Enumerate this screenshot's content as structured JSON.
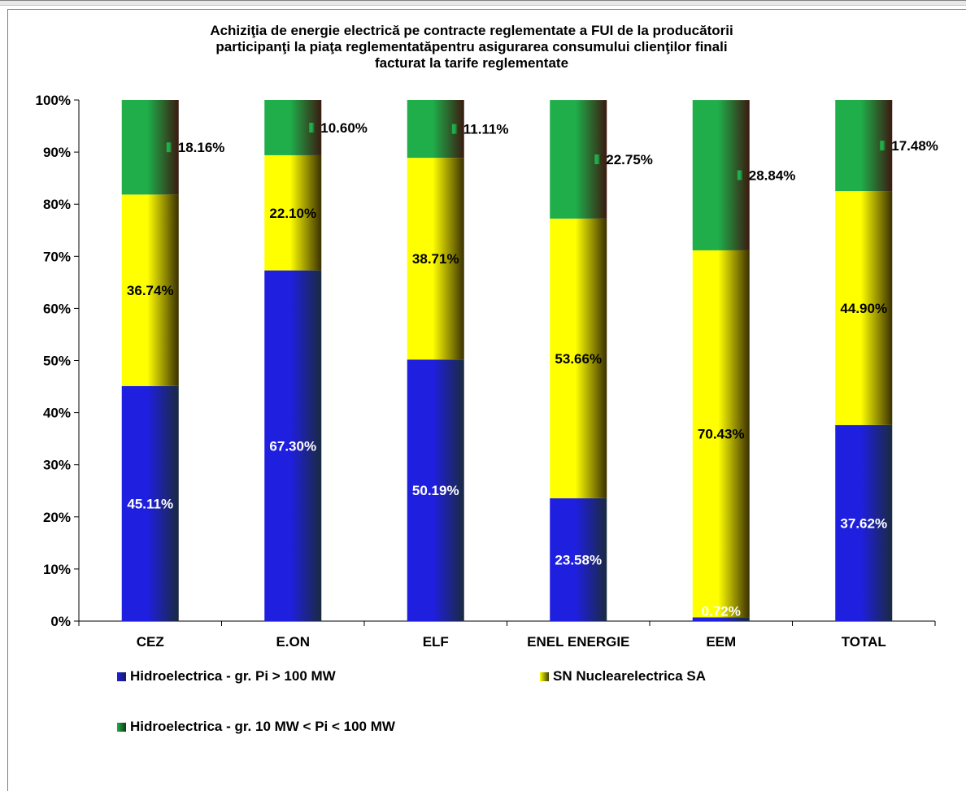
{
  "chart_data": {
    "type": "bar",
    "stacked": true,
    "percent": true,
    "title_lines": [
      "Achiziţia de energie electrică pe contracte reglementate a FUI  de la  producătorii",
      "participanţi la piaţa reglementatăpentru  asigurarea consumului clienţilor  finali",
      "facturat  la tarife reglementate"
    ],
    "categories": [
      "CEZ",
      "E.ON",
      "ELF",
      "ENEL ENERGIE",
      "EEM",
      "TOTAL"
    ],
    "y_ticks": [
      "0%",
      "10%",
      "20%",
      "30%",
      "40%",
      "50%",
      "60%",
      "70%",
      "80%",
      "90%",
      "100%"
    ],
    "ylim": [
      0,
      100
    ],
    "series": [
      {
        "name": "Hidroelectrica - gr. Pi > 100 MW",
        "color": "#1f1fe0",
        "values": [
          45.11,
          67.3,
          50.19,
          23.58,
          0.72,
          37.62
        ],
        "labels": [
          "45.11%",
          "67.30%",
          "50.19%",
          "23.58%",
          "0.72%",
          "37.62%"
        ]
      },
      {
        "name": "SN Nuclearelectrica SA",
        "color": "#ffff00",
        "values": [
          36.74,
          22.1,
          38.71,
          53.66,
          70.43,
          44.9
        ],
        "labels": [
          "36.74%",
          "22.10%",
          "38.71%",
          "53.66%",
          "70.43%",
          "44.90%"
        ]
      },
      {
        "name": "Hidroelectrica - gr. 10 MW < Pi < 100 MW",
        "color": "#1fae4a",
        "values": [
          18.16,
          10.6,
          11.11,
          22.75,
          28.84,
          17.48
        ],
        "labels": [
          "18.16%",
          "10.60%",
          "11.11%",
          "22.75%",
          "28.84%",
          "17.48%"
        ]
      }
    ],
    "legend_position": "bottom",
    "grid": false
  }
}
